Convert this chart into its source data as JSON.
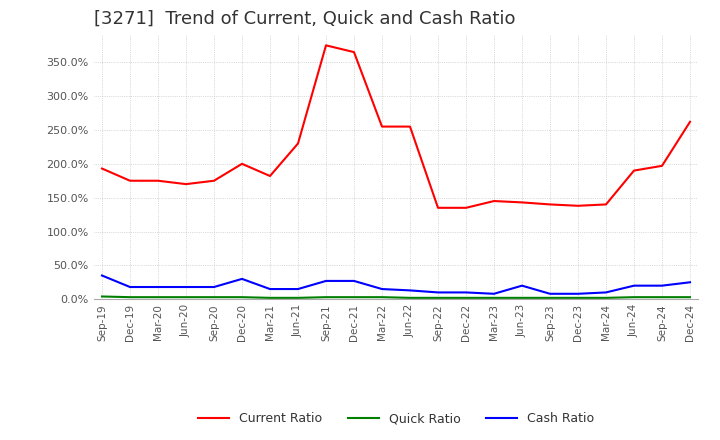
{
  "title": "[3271]  Trend of Current, Quick and Cash Ratio",
  "x_labels": [
    "Sep-19",
    "Dec-19",
    "Mar-20",
    "Jun-20",
    "Sep-20",
    "Dec-20",
    "Mar-21",
    "Jun-21",
    "Sep-21",
    "Dec-21",
    "Mar-22",
    "Jun-22",
    "Sep-22",
    "Dec-22",
    "Mar-23",
    "Jun-23",
    "Sep-23",
    "Dec-23",
    "Mar-24",
    "Jun-24",
    "Sep-24",
    "Dec-24"
  ],
  "current_ratio": [
    193,
    175,
    175,
    170,
    175,
    200,
    182,
    230,
    375,
    365,
    255,
    255,
    135,
    135,
    145,
    143,
    140,
    138,
    140,
    190,
    197,
    262
  ],
  "quick_ratio": [
    4,
    3,
    3,
    3,
    3,
    3,
    2,
    2,
    3,
    3,
    3,
    2,
    2,
    2,
    2,
    2,
    2,
    2,
    2,
    3,
    3,
    3
  ],
  "cash_ratio": [
    35,
    18,
    18,
    18,
    18,
    30,
    15,
    15,
    27,
    27,
    15,
    13,
    10,
    10,
    8,
    20,
    8,
    8,
    10,
    20,
    20,
    25
  ],
  "current_color": "#ff0000",
  "quick_color": "#008000",
  "cash_color": "#0000ff",
  "ylim": [
    0,
    390
  ],
  "yticks": [
    0,
    50,
    100,
    150,
    200,
    250,
    300,
    350
  ],
  "background_color": "#ffffff",
  "grid_color": "#bbbbbb",
  "title_fontsize": 13,
  "legend_labels": [
    "Current Ratio",
    "Quick Ratio",
    "Cash Ratio"
  ]
}
